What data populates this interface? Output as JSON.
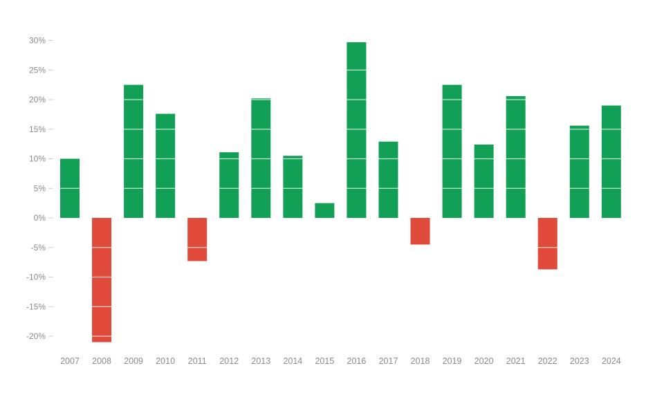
{
  "chart_data": {
    "type": "bar",
    "title": "",
    "xlabel": "",
    "ylabel": "",
    "categories": [
      "2007",
      "2008",
      "2009",
      "2010",
      "2011",
      "2012",
      "2013",
      "2014",
      "2015",
      "2016",
      "2017",
      "2018",
      "2019",
      "2020",
      "2021",
      "2022",
      "2023",
      "2024"
    ],
    "values": [
      10.0,
      -21.0,
      22.5,
      17.6,
      -7.3,
      11.1,
      20.2,
      10.5,
      2.5,
      29.7,
      12.9,
      -4.5,
      22.5,
      12.4,
      20.6,
      -8.7,
      15.6,
      19.0
    ],
    "ylim": [
      -20,
      30
    ],
    "yticks": [
      30,
      25,
      20,
      15,
      10,
      5,
      0,
      -5,
      -10,
      -15,
      -20
    ],
    "ytick_labels": [
      "30%",
      "25%",
      "20%",
      "15%",
      "10%",
      "5%",
      "0%",
      "-5%",
      "-10%",
      "-15%",
      "-20%"
    ],
    "grid": false,
    "colors": {
      "positive": "#12a057",
      "negative": "#e04a3a",
      "tick_text": "#8a8a8a",
      "axis": "#d0d0d0"
    }
  }
}
